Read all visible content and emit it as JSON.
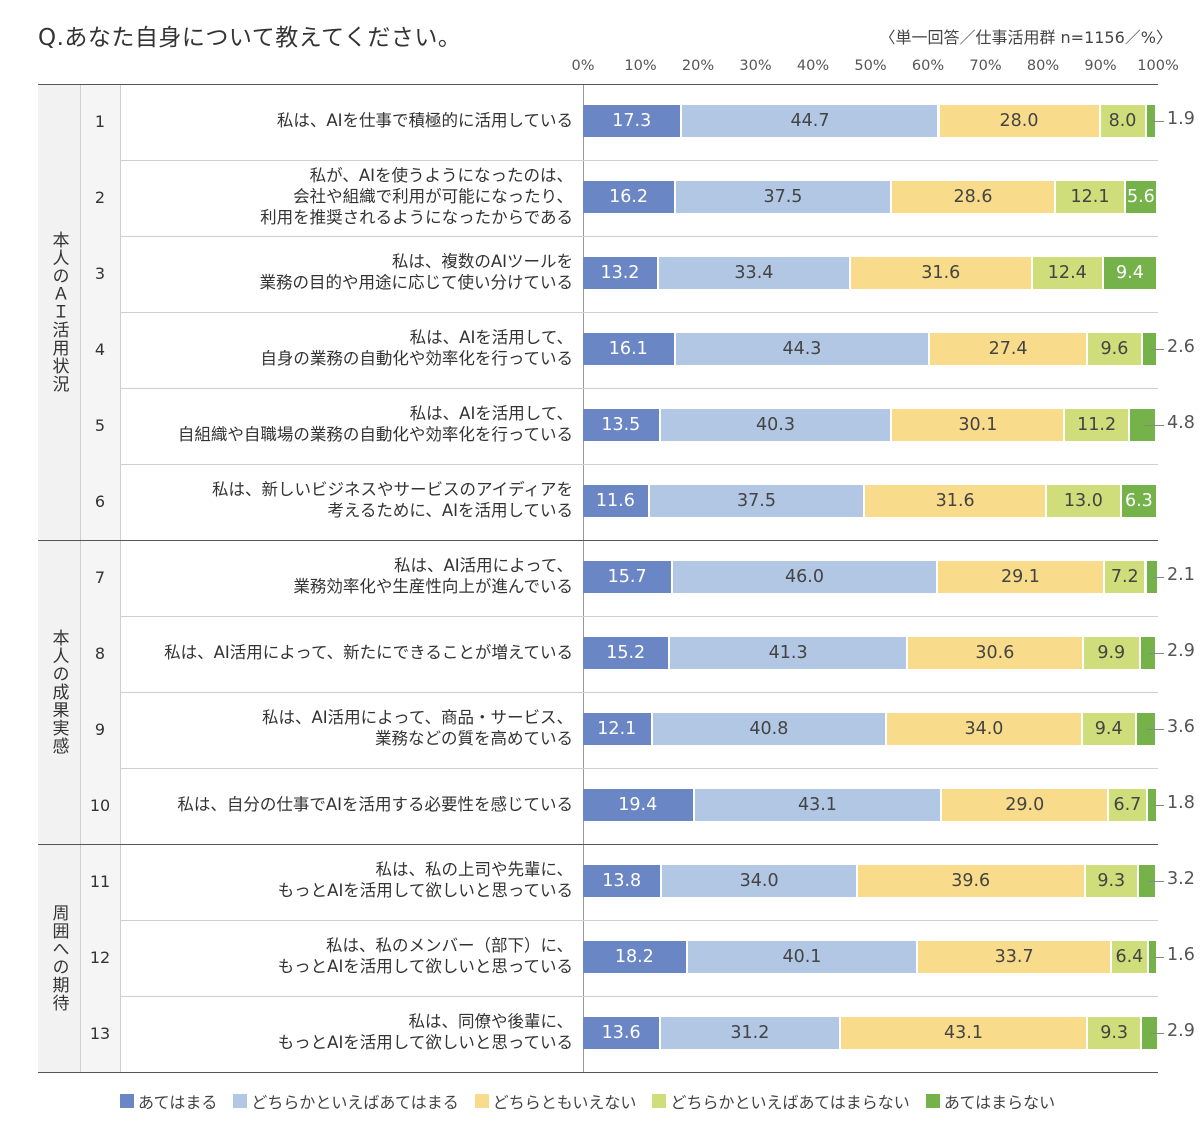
{
  "header": {
    "title": "Q.あなた自身について教えてください。",
    "note": "〈単一回答／仕事活用群 n=1156／%〉"
  },
  "legend": {
    "items": [
      "あてはまる",
      "どちらかといえばあてはまる",
      "どちらともいえない",
      "どちらかといえばあてはまらない",
      "あてはまらない"
    ]
  },
  "colors": [
    "#6b86c4",
    "#b1c7e3",
    "#f8dc8b",
    "#cfdd7a",
    "#75b34a"
  ],
  "groups": [
    {
      "label": "本人のＡＩ活用状況",
      "rows": 6
    },
    {
      "label": "本人の成果実感",
      "rows": 4
    },
    {
      "label": "周囲への期待",
      "rows": 3
    }
  ],
  "rows": [
    {
      "num": "1",
      "label": "私は、AIを仕事で積極的に活用している"
    },
    {
      "num": "2",
      "label": "私が、AIを使うようになったのは、\n会社や組織で利用が可能になったり、\n利用を推奨されるようになったからである"
    },
    {
      "num": "3",
      "label": "私は、複数のAIツールを\n業務の目的や用途に応じて使い分けている"
    },
    {
      "num": "4",
      "label": "私は、AIを活用して、\n自身の業務の自動化や効率化を行っている"
    },
    {
      "num": "5",
      "label": "私は、AIを活用して、\n自組織や自職場の業務の自動化や効率化を行っている"
    },
    {
      "num": "6",
      "label": "私は、新しいビジネスやサービスのアイディアを\n考えるために、AIを活用している"
    },
    {
      "num": "7",
      "label": "私は、AI活用によって、\n業務効率化や生産性向上が進んでいる"
    },
    {
      "num": "8",
      "label": "私は、AI活用によって、新たにできることが増えている"
    },
    {
      "num": "9",
      "label": "私は、AI活用によって、商品・サービス、\n業務などの質を高めている"
    },
    {
      "num": "10",
      "label": "私は、自分の仕事でAIを活用する必要性を感じている"
    },
    {
      "num": "11",
      "label": "私は、私の上司や先輩に、\nもっとAIを活用して欲しいと思っている"
    },
    {
      "num": "12",
      "label": "私は、私のメンバー（部下）に、\nもっとAIを活用して欲しいと思っている"
    },
    {
      "num": "13",
      "label": "私は、同僚や後輩に、\nもっとAIを活用して欲しいと思っている"
    }
  ],
  "chart_data": {
    "type": "bar",
    "orientation": "horizontal",
    "stacked": true,
    "title": "Q.あなた自身について教えてください。",
    "xlim": [
      0,
      100
    ],
    "xticks": [
      "0%",
      "10%",
      "20%",
      "30%",
      "40%",
      "50%",
      "60%",
      "70%",
      "80%",
      "90%",
      "100%"
    ],
    "categories": [
      "1",
      "2",
      "3",
      "4",
      "5",
      "6",
      "7",
      "8",
      "9",
      "10",
      "11",
      "12",
      "13"
    ],
    "series": [
      {
        "name": "あてはまる",
        "values": [
          17.3,
          16.2,
          13.2,
          16.1,
          13.5,
          11.6,
          15.7,
          15.2,
          12.1,
          19.4,
          13.8,
          18.2,
          13.6
        ]
      },
      {
        "name": "どちらかといえばあてはまる",
        "values": [
          44.7,
          37.5,
          33.4,
          44.3,
          40.3,
          37.5,
          46.0,
          41.3,
          40.8,
          43.1,
          34.0,
          40.1,
          31.2
        ]
      },
      {
        "name": "どちらともいえない",
        "values": [
          28.0,
          28.6,
          31.6,
          27.4,
          30.1,
          31.6,
          29.1,
          30.6,
          34.0,
          29.0,
          39.6,
          33.7,
          43.1
        ]
      },
      {
        "name": "どちらかといえばあてはまらない",
        "values": [
          8.0,
          12.1,
          12.4,
          9.6,
          11.2,
          13.0,
          7.2,
          9.9,
          9.4,
          6.7,
          9.3,
          6.4,
          9.3
        ]
      },
      {
        "name": "あてはまらない",
        "values": [
          1.9,
          5.6,
          9.4,
          2.6,
          4.8,
          6.3,
          2.1,
          2.9,
          3.6,
          1.8,
          3.2,
          1.6,
          2.9
        ]
      }
    ],
    "labels": [
      [
        "17.3",
        "44.7",
        "28.0",
        "8.0",
        "1.9"
      ],
      [
        "16.2",
        "37.5",
        "28.6",
        "12.1",
        "5.6"
      ],
      [
        "13.2",
        "33.4",
        "31.6",
        "12.4",
        "9.4"
      ],
      [
        "16.1",
        "44.3",
        "27.4",
        "9.6",
        "2.6"
      ],
      [
        "13.5",
        "40.3",
        "30.1",
        "11.2",
        "4.8"
      ],
      [
        "11.6",
        "37.5",
        "31.6",
        "13.0",
        "6.3"
      ],
      [
        "15.7",
        "46.0",
        "29.1",
        "7.2",
        "2.1"
      ],
      [
        "15.2",
        "41.3",
        "30.6",
        "9.9",
        "2.9"
      ],
      [
        "12.1",
        "40.8",
        "34.0",
        "9.4",
        "3.6"
      ],
      [
        "19.4",
        "43.1",
        "29.0",
        "6.7",
        "1.8"
      ],
      [
        "13.8",
        "34.0",
        "39.6",
        "9.3",
        "3.2"
      ],
      [
        "18.2",
        "40.1",
        "33.7",
        "6.4",
        "1.6"
      ],
      [
        "13.6",
        "31.2",
        "43.1",
        "9.3",
        "2.9"
      ]
    ],
    "legend_position": "bottom",
    "grid": true
  }
}
